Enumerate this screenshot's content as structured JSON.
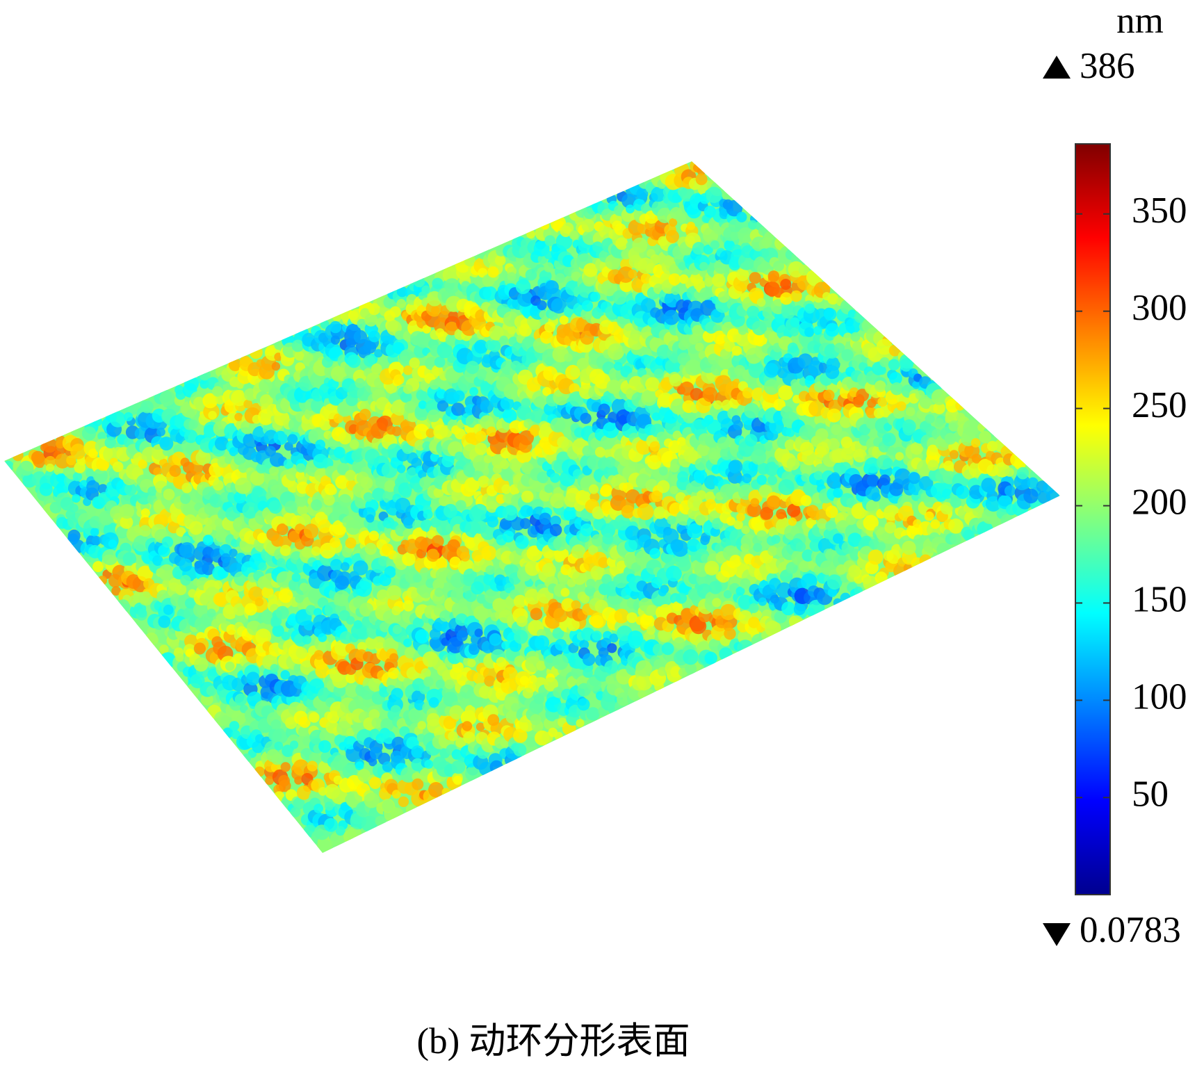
{
  "chart_data": {
    "type": "surface",
    "caption": "(b) 动环分形表面",
    "colorbar_unit": "nm",
    "ylim": [
      0.0783,
      386
    ],
    "yticks": [
      50,
      100,
      150,
      200,
      250,
      300,
      350
    ],
    "colors": [
      "#00008f",
      "#0000ff",
      "#0080ff",
      "#00ffff",
      "#80ff80",
      "#ffff00",
      "#ff8000",
      "#ff0000",
      "#800000"
    ]
  }
}
